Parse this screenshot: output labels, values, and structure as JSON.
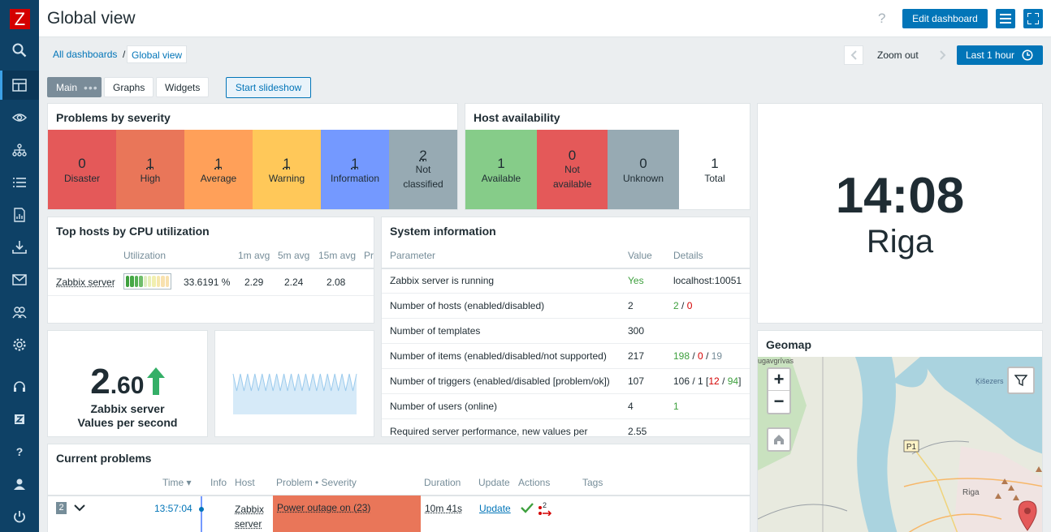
{
  "app": {
    "logo_letter": "Z"
  },
  "header": {
    "title": "Global view",
    "help": "?",
    "edit_label": "Edit dashboard"
  },
  "breadcrumb": {
    "root": "All dashboards",
    "separator": "/",
    "current": "Global view"
  },
  "time": {
    "zoom_out": "Zoom out",
    "period": "Last 1 hour"
  },
  "tabs": [
    {
      "label": "Main"
    },
    {
      "label": "Graphs"
    },
    {
      "label": "Widgets"
    }
  ],
  "slideshow_label": "Start slideshow",
  "problems": {
    "title": "Problems by severity",
    "items": [
      {
        "count": "0",
        "label": "Disaster",
        "color": "#e45959"
      },
      {
        "count": "1",
        "label": "High",
        "color": "#e97659"
      },
      {
        "count": "1",
        "label": "Average",
        "color": "#ffa059"
      },
      {
        "count": "1",
        "label": "Warning",
        "color": "#ffc859"
      },
      {
        "count": "1",
        "label": "Information",
        "color": "#7499ff"
      },
      {
        "count": "2",
        "label": "Not classified",
        "color": "#97aab3"
      }
    ]
  },
  "availability": {
    "title": "Host availability",
    "items": [
      {
        "count": "1",
        "label": "Available",
        "color": "#86cc89"
      },
      {
        "count": "0",
        "label": "Not available",
        "color": "#e45959"
      },
      {
        "count": "0",
        "label": "Unknown",
        "color": "#97aab3"
      },
      {
        "count": "1",
        "label": "Total",
        "color": "#ffffff"
      }
    ]
  },
  "clock": {
    "time": "14:08",
    "city": "Riga"
  },
  "top_hosts": {
    "title": "Top hosts by CPU utilization",
    "headers": [
      "Utilization",
      "1m avg",
      "5m avg",
      "15m avg",
      "Pr"
    ],
    "row": {
      "host": "Zabbix server",
      "utilization": "33.6191 %",
      "utilization_level": 0.34,
      "m1": "2.29",
      "m5": "2.24",
      "m15": "2.08"
    }
  },
  "sysinfo": {
    "title": "System information",
    "headers": [
      "Parameter",
      "Value",
      "Details"
    ],
    "rows": [
      {
        "param": "Zabbix server is running",
        "value": "Yes",
        "details": "localhost:10051"
      },
      {
        "param": "Number of hosts (enabled/disabled)",
        "value": "2",
        "d1": "2",
        "d2": "0"
      },
      {
        "param": "Number of templates",
        "value": "300"
      },
      {
        "param": "Number of items (enabled/disabled/not supported)",
        "value": "217",
        "d1": "198",
        "d2": "0",
        "d3": "19"
      },
      {
        "param": "Number of triggers (enabled/disabled [problem/ok])",
        "value": "107",
        "d0": "106 / 1 [",
        "d1": "12",
        "d2": "94",
        "d4": "]"
      },
      {
        "param": "Number of users (online)",
        "value": "4",
        "d1": "1"
      },
      {
        "param": "Required server performance, new values per",
        "value": "2.55"
      }
    ]
  },
  "item_value": {
    "int_part": "2",
    "dec_part": ".60",
    "host": "Zabbix server",
    "desc": "Values per second"
  },
  "geomap": {
    "title": "Geomap",
    "zoom_in": "+",
    "zoom_out": "−",
    "labels": {
      "riga": "Riga",
      "kisezers": "Ķišezers",
      "p1": "P1",
      "daugavgrivas": "ugavgrīvas"
    }
  },
  "current_problems": {
    "title": "Current problems",
    "headers": {
      "time": "Time ▾",
      "info": "Info",
      "host": "Host",
      "problem": "Problem • Severity",
      "duration": "Duration",
      "update": "Update",
      "actions": "Actions",
      "tags": "Tags"
    },
    "row": {
      "count": "2",
      "time": "13:57:04",
      "host_line1": "Zabbix",
      "host_line2": "server",
      "problem": "Power outage on (23)",
      "duration": "10m 41s",
      "update": "Update",
      "action_count": "2"
    }
  }
}
